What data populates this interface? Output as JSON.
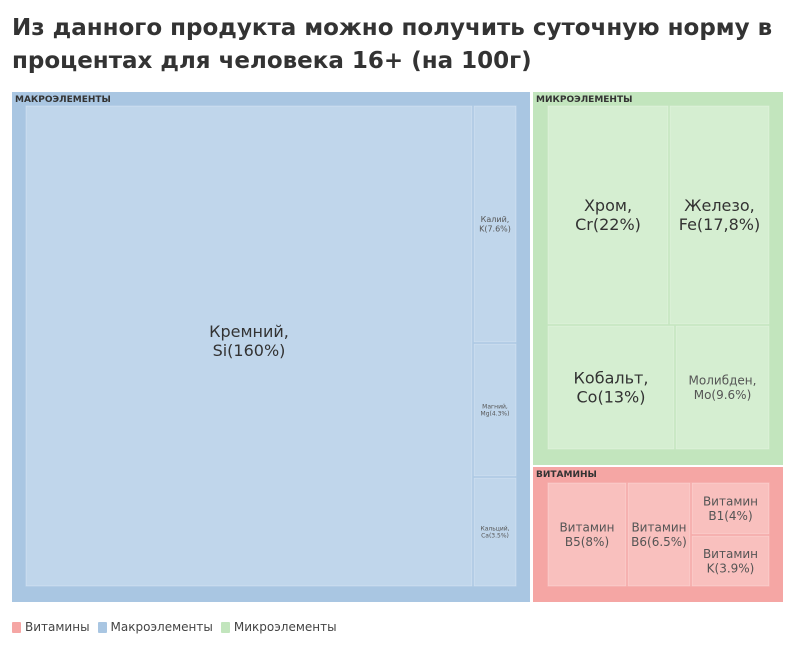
{
  "title": "Из данного продукта можно получить суточную норму в процентах для человека 16+ (на 100г)",
  "colors": {
    "macro_group": "#a9c6e2",
    "macro_tile": "#c0d6eb",
    "micro_group": "#c2e5bd",
    "micro_tile": "#d5eed1",
    "vit_group": "#f5a6a4",
    "vit_tile": "#f9c0be"
  },
  "legend": [
    {
      "label": "Витамины",
      "color": "#f5a6a4"
    },
    {
      "label": "Макроэлементы",
      "color": "#a9c6e2"
    },
    {
      "label": "Микроэлементы",
      "color": "#c2e5bd"
    }
  ],
  "chart_data": {
    "type": "treemap",
    "unit": "%",
    "groups": [
      {
        "name": "МАКРОЭЛЕМЕНТЫ",
        "color_key": "macro",
        "items": [
          {
            "label": "Кремний, Si(160%)",
            "value": 160
          },
          {
            "label": "Калий, K(7.6%)",
            "value": 7.6
          },
          {
            "label": "Магний, Mg(4.3%)",
            "value": 4.3
          },
          {
            "label": "Кальций, Ca(3.5%)",
            "value": 3.5
          }
        ]
      },
      {
        "name": "МИКРОЭЛЕМЕНТЫ",
        "color_key": "micro",
        "items": [
          {
            "label": "Хром, Cr(22%)",
            "value": 22
          },
          {
            "label": "Железо, Fe(17,8%)",
            "value": 17.8
          },
          {
            "label": "Кобальт, Co(13%)",
            "value": 13
          },
          {
            "label": "Молибден, Mo(9.6%)",
            "value": 9.6
          }
        ]
      },
      {
        "name": "ВИТАМИНЫ",
        "color_key": "vit",
        "items": [
          {
            "label": "Витамин B5(8%)",
            "value": 8
          },
          {
            "label": "Витамин B6(6.5%)",
            "value": 6.5
          },
          {
            "label": "Витамин B1(4%)",
            "value": 4
          },
          {
            "label": "Витамин K(3.9%)",
            "value": 3.9
          }
        ]
      }
    ]
  }
}
